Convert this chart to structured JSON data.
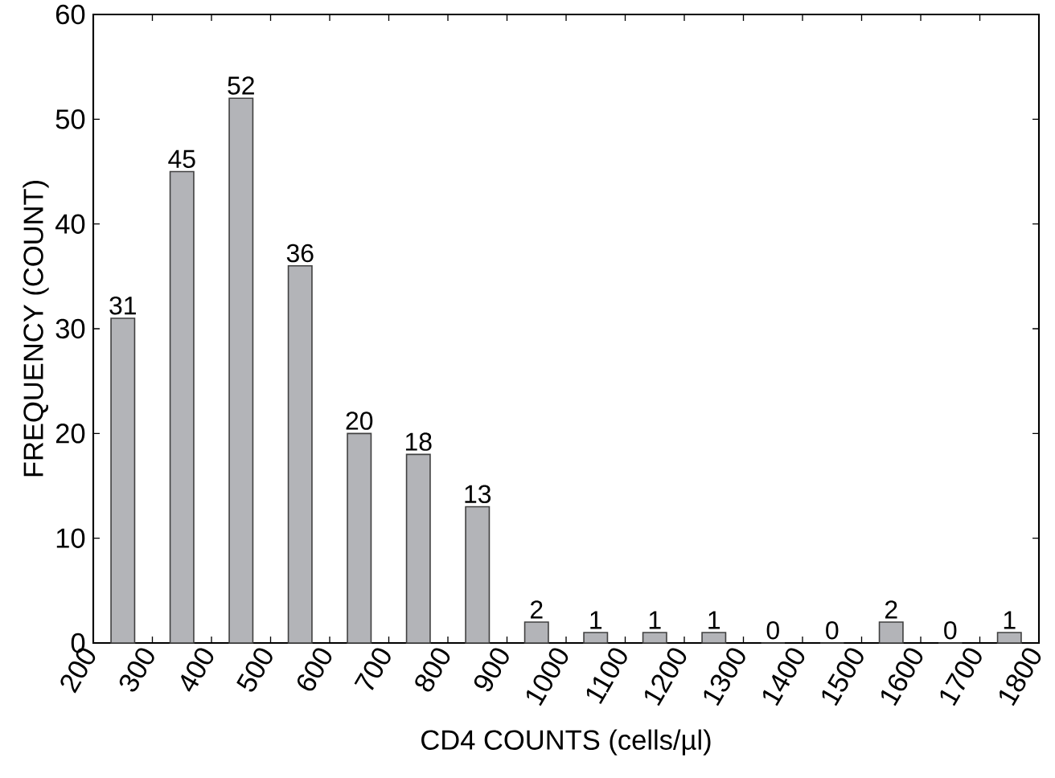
{
  "chart_data": {
    "type": "histogram",
    "xlabel": "CD4 COUNTS (cells/µl)",
    "ylabel": "FREQUENCY (COUNT)",
    "bins": [
      200,
      300,
      400,
      500,
      600,
      700,
      800,
      900,
      1000,
      1100,
      1200,
      1300,
      1400,
      1500,
      1600,
      1700,
      1800
    ],
    "values": [
      31,
      45,
      52,
      36,
      20,
      18,
      13,
      2,
      1,
      1,
      1,
      0,
      0,
      2,
      0,
      1
    ],
    "color": "#b3b4b8",
    "xlim": [
      200,
      1800
    ],
    "xticks": [
      200,
      300,
      400,
      500,
      600,
      700,
      800,
      900,
      1000,
      1100,
      1200,
      1300,
      1400,
      1500,
      1600,
      1700,
      1800
    ],
    "ylim": [
      0,
      60
    ],
    "yticks": [
      0,
      10,
      20,
      30,
      40,
      50,
      60
    ],
    "data_labels": true
  }
}
